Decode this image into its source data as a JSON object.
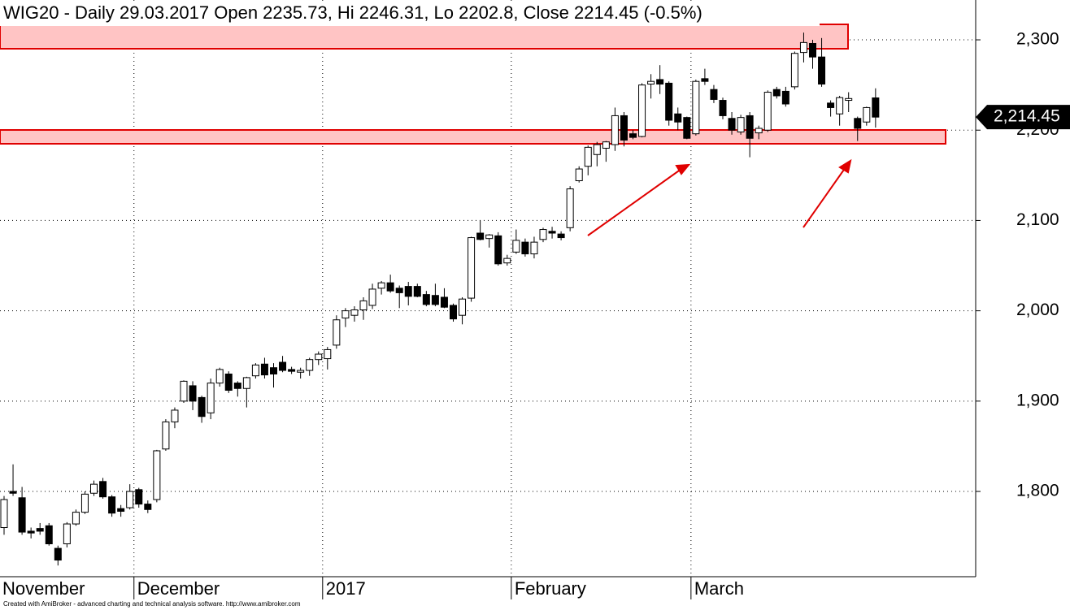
{
  "chart_data": {
    "type": "candlestick",
    "title": "WIG20 - Daily 29.03.2017 Open 2235.73, Hi 2246.31, Lo 2202.8, Close 2214.45 (-0.5%)",
    "footer": "Created with AmiBroker - advanced charting and technical analysis software. http://www.amibroker.com",
    "categories": [
      "November",
      null,
      null,
      null,
      null,
      null,
      null,
      null,
      null,
      null,
      null,
      null,
      null,
      null,
      null,
      "December",
      null,
      null,
      null,
      null,
      null,
      null,
      null,
      null,
      null,
      null,
      null,
      null,
      null,
      null,
      null,
      null,
      null,
      null,
      null,
      null,
      "2017",
      null,
      null,
      null,
      null,
      null,
      null,
      null,
      null,
      null,
      null,
      null,
      null,
      null,
      null,
      null,
      null,
      null,
      null,
      null,
      null,
      "February",
      null,
      null,
      null,
      null,
      null,
      null,
      null,
      null,
      null,
      null,
      null,
      null,
      null,
      null,
      null,
      null,
      null,
      null,
      null,
      "March",
      null,
      null,
      null,
      null,
      null,
      null,
      null,
      null,
      null,
      null,
      null,
      null,
      null,
      null,
      null,
      null,
      null,
      null,
      null,
      null
    ],
    "open": [
      1760,
      1800,
      1793,
      1756,
      1759,
      1762,
      1737,
      1742,
      1764,
      1777,
      1798,
      1811,
      1794,
      1781,
      1782,
      1802,
      1786,
      1791,
      1847,
      1877,
      1900,
      1917,
      1904,
      1887,
      1920,
      1930,
      1920,
      1914,
      1928,
      1941,
      1937,
      1943,
      1935,
      1932,
      1934,
      1946,
      1947,
      1962,
      1992,
      1995,
      2001,
      2006,
      2025,
      2031,
      2025,
      2027,
      2027,
      2018,
      2017,
      2015,
      2006,
      1995,
      2014,
      2086,
      2080,
      2083,
      2053,
      2065,
      2076,
      2063,
      2079,
      2088,
      2085,
      2092,
      2144,
      2160,
      2173,
      2180,
      2184,
      2216,
      2196,
      2193,
      2251,
      2256,
      2252,
      2218,
      2214,
      2196,
      2257,
      2245,
      2233,
      2213,
      2198,
      2216,
      2197,
      2200,
      2245,
      2243,
      2248,
      2286,
      2296,
      2281,
      2230,
      2218,
      2233,
      2213,
      2209,
      2235.73
    ],
    "high": [
      1795,
      1830,
      1805,
      1760,
      1765,
      1765,
      1740,
      1766,
      1780,
      1800,
      1812,
      1815,
      1796,
      1785,
      1808,
      1804,
      1790,
      1846,
      1880,
      1893,
      1923,
      1922,
      1906,
      1925,
      1937,
      1933,
      1922,
      1927,
      1942,
      1948,
      1942,
      1950,
      1938,
      1937,
      1948,
      1955,
      1960,
      1995,
      2003,
      2005,
      2015,
      2030,
      2033,
      2040,
      2028,
      2032,
      2030,
      2022,
      2030,
      2025,
      2008,
      2015,
      2082,
      2100,
      2085,
      2087,
      2062,
      2090,
      2080,
      2082,
      2092,
      2093,
      2088,
      2138,
      2160,
      2183,
      2187,
      2188,
      2225,
      2220,
      2200,
      2252,
      2262,
      2272,
      2254,
      2225,
      2215,
      2256,
      2268,
      2250,
      2236,
      2220,
      2217,
      2220,
      2205,
      2244,
      2248,
      2248,
      2287,
      2308,
      2300,
      2302,
      2233,
      2238,
      2242,
      2215,
      2226,
      2246.31
    ],
    "low": [
      1752,
      1795,
      1752,
      1748,
      1752,
      1740,
      1718,
      1738,
      1762,
      1775,
      1795,
      1792,
      1772,
      1772,
      1780,
      1782,
      1776,
      1788,
      1845,
      1870,
      1898,
      1890,
      1876,
      1880,
      1916,
      1909,
      1905,
      1893,
      1925,
      1925,
      1915,
      1932,
      1930,
      1925,
      1928,
      1940,
      1935,
      1958,
      1982,
      1988,
      1990,
      2002,
      2018,
      2020,
      2003,
      2006,
      2015,
      2005,
      2005,
      2003,
      1988,
      1985,
      2010,
      2078,
      2070,
      2050,
      2050,
      2063,
      2060,
      2058,
      2076,
      2080,
      2078,
      2088,
      2142,
      2150,
      2160,
      2165,
      2177,
      2182,
      2190,
      2192,
      2235,
      2240,
      2205,
      2200,
      2190,
      2194,
      2250,
      2230,
      2212,
      2195,
      2195,
      2170,
      2190,
      2198,
      2235,
      2226,
      2245,
      2275,
      2268,
      2248,
      2215,
      2205,
      2220,
      2188,
      2205,
      2202.8
    ],
    "close": [
      1791,
      1798,
      1755,
      1754,
      1756,
      1742,
      1724,
      1764,
      1777,
      1797,
      1808,
      1794,
      1776,
      1778,
      1800,
      1786,
      1780,
      1845,
      1877,
      1890,
      1922,
      1900,
      1883,
      1920,
      1935,
      1912,
      1914,
      1926,
      1940,
      1929,
      1930,
      1934,
      1933,
      1934,
      1946,
      1952,
      1957,
      1990,
      2000,
      2001,
      2011,
      2024,
      2031,
      2022,
      2020,
      2016,
      2016,
      2007,
      2007,
      2004,
      1991,
      2013,
      2081,
      2079,
      2084,
      2052,
      2058,
      2078,
      2063,
      2076,
      2090,
      2086,
      2081,
      2135,
      2157,
      2181,
      2184,
      2187,
      2216,
      2189,
      2192,
      2250,
      2254,
      2251,
      2211,
      2209,
      2191,
      2254,
      2254,
      2234,
      2216,
      2200,
      2214,
      2191,
      2202,
      2242,
      2238,
      2229,
      2285,
      2297,
      2281,
      2251,
      2225,
      2236,
      2235,
      2202,
      2225,
      2214.45
    ],
    "last_price": {
      "value": 2214.45,
      "label": "2,214.45"
    },
    "up_color": "#ffffff",
    "down_color": "#000000",
    "ylim": [
      1705.6,
      2344.1
    ],
    "yticks": [
      {
        "value": 1800,
        "label": "1,800"
      },
      {
        "value": 1900,
        "label": "1,900"
      },
      {
        "value": 2000,
        "label": "2,000"
      },
      {
        "value": 2100,
        "label": "2,100"
      },
      {
        "value": 2200,
        "label": "2,200"
      },
      {
        "value": 2300,
        "label": "2,300"
      }
    ],
    "grid": true
  }
}
